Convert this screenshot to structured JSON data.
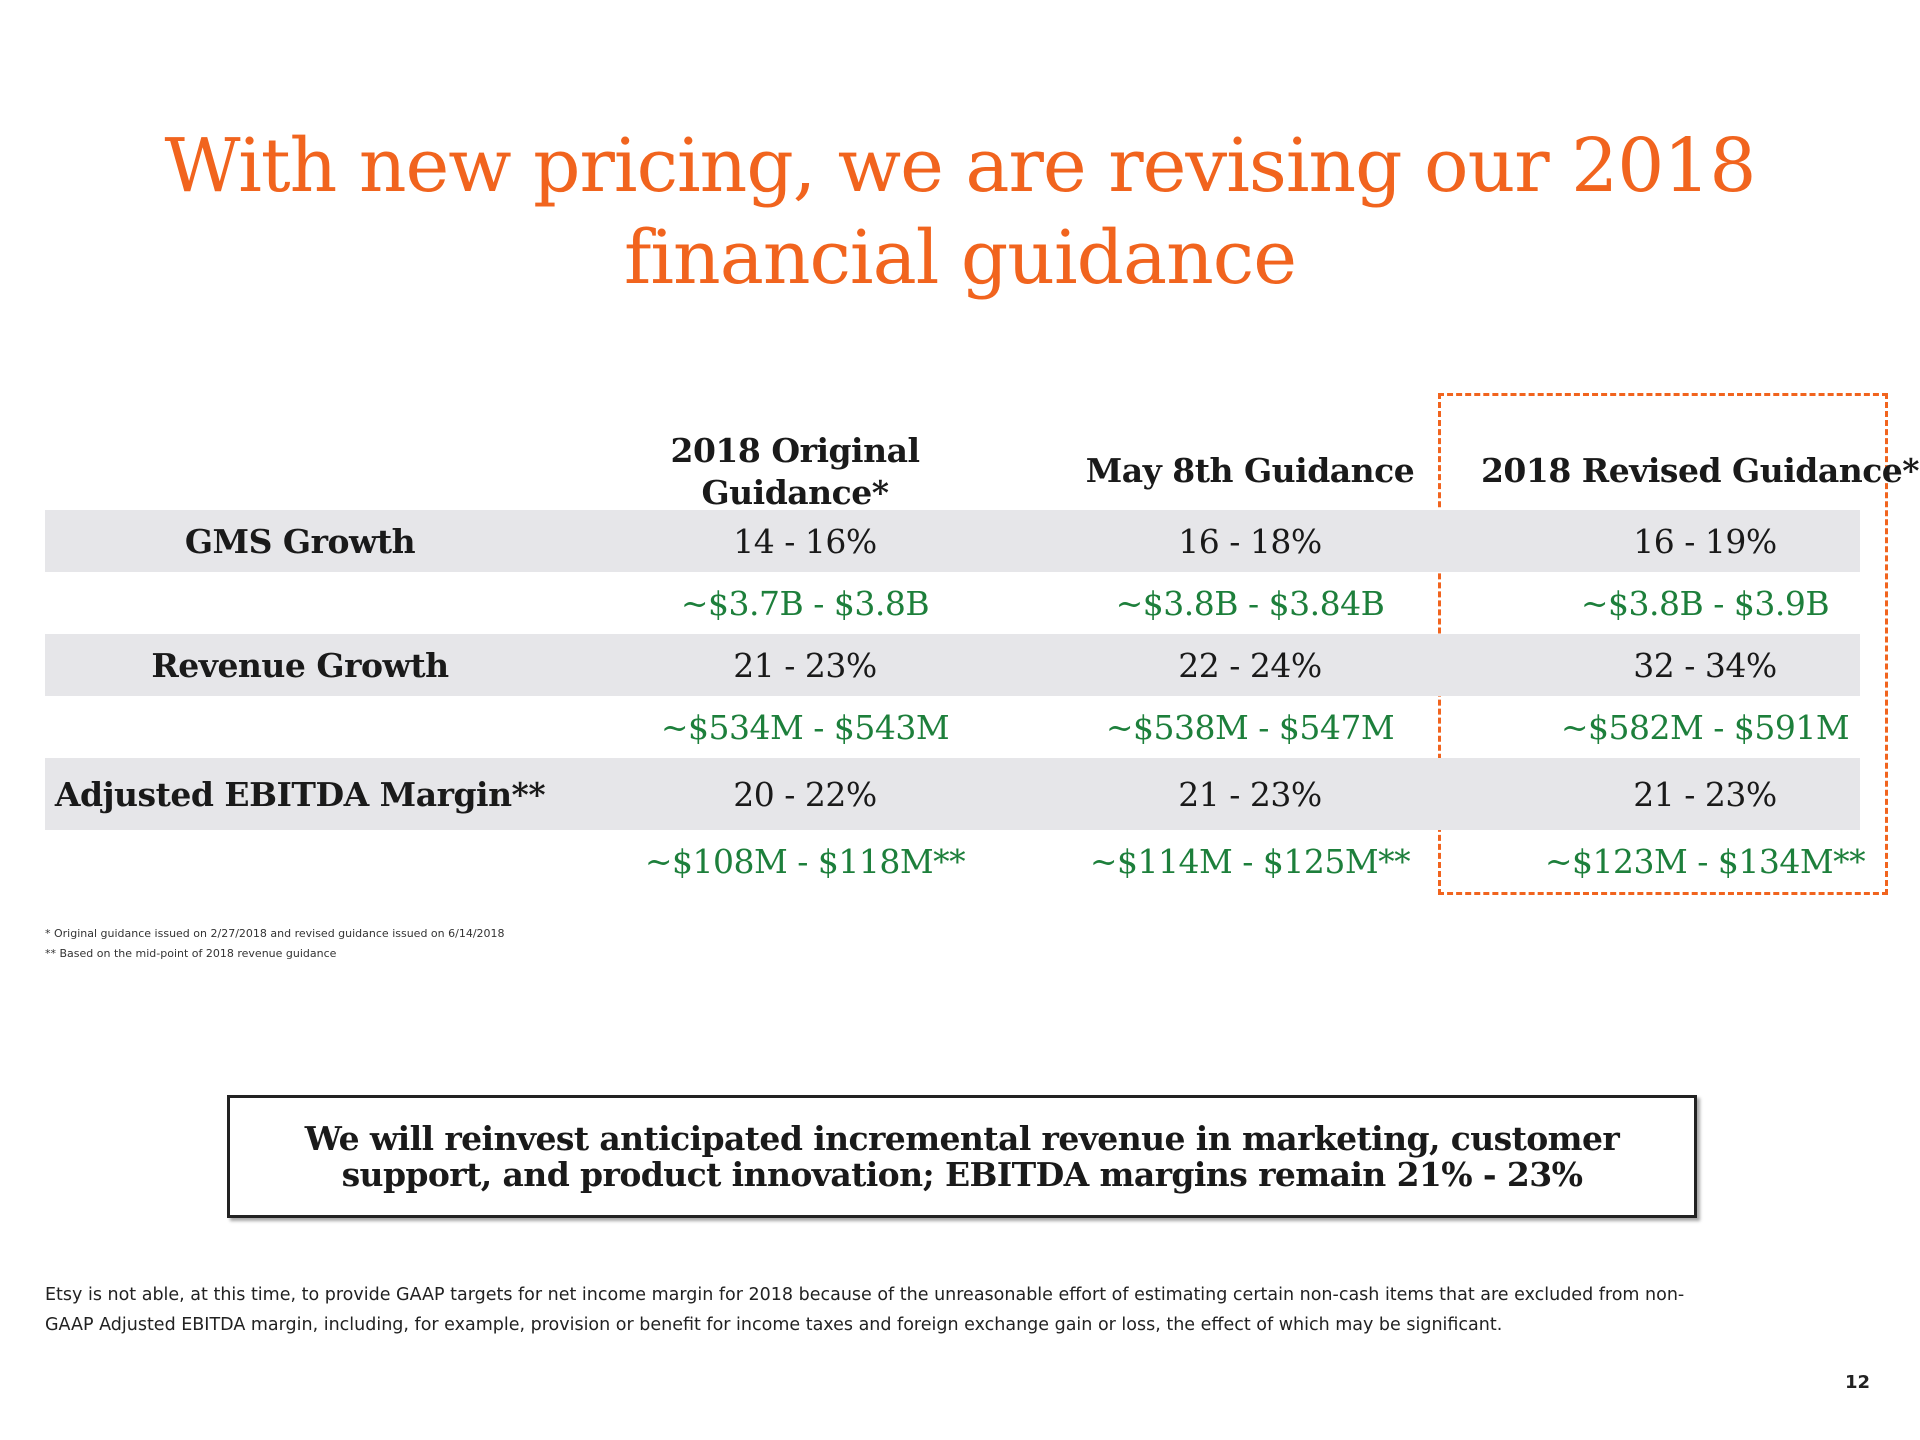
{
  "title": {
    "line1": "With new pricing, we are revising our 2018",
    "line2": "financial guidance"
  },
  "columns": [
    {
      "header": "2018 Original Guidance*"
    },
    {
      "header": "May 8th Guidance"
    },
    {
      "header": "2018 Revised Guidance*"
    }
  ],
  "rows": [
    {
      "label": "GMS Growth",
      "percent": [
        "14 - 16%",
        "16 - 18%",
        "16 - 19%"
      ],
      "dollars": [
        "~$3.7B - $3.8B",
        "~$3.8B - $3.84B",
        "~$3.8B - $3.9B"
      ]
    },
    {
      "label": "Revenue Growth",
      "percent": [
        "21 - 23%",
        "22 - 24%",
        "32 - 34%"
      ],
      "dollars": [
        "~$534M - $543M",
        "~$538M - $547M",
        "~$582M - $591M"
      ]
    },
    {
      "label": "Adjusted EBITDA Margin**",
      "percent": [
        "20 - 22%",
        "21 - 23%",
        "21 - 23%"
      ],
      "dollars": [
        "~$108M - $118M**",
        "~$114M - $125M**",
        "~$123M - $134M**"
      ]
    }
  ],
  "footnotes": [
    "* Original guidance issued on 2/27/2018 and revised guidance issued on 6/14/2018",
    "** Based on the mid-point of 2018 revenue guidance"
  ],
  "callout": "We will reinvest anticipated incremental revenue in marketing, customer support, and product innovation; EBITDA margins remain 21% - 23%",
  "disclaimer": "Etsy is not able, at this time, to provide GAAP targets for net income margin for 2018 because of the unreasonable effort of estimating certain non-cash items that are excluded from non-GAAP Adjusted EBITDA margin, including, for example, provision or benefit for income taxes and foreign exchange gain or loss, the effect of which may be significant.",
  "page_number": "12",
  "colors": {
    "accent": "#F1641E",
    "green_value": "#1d7f3b",
    "row_shade": "#e6e6e9"
  }
}
